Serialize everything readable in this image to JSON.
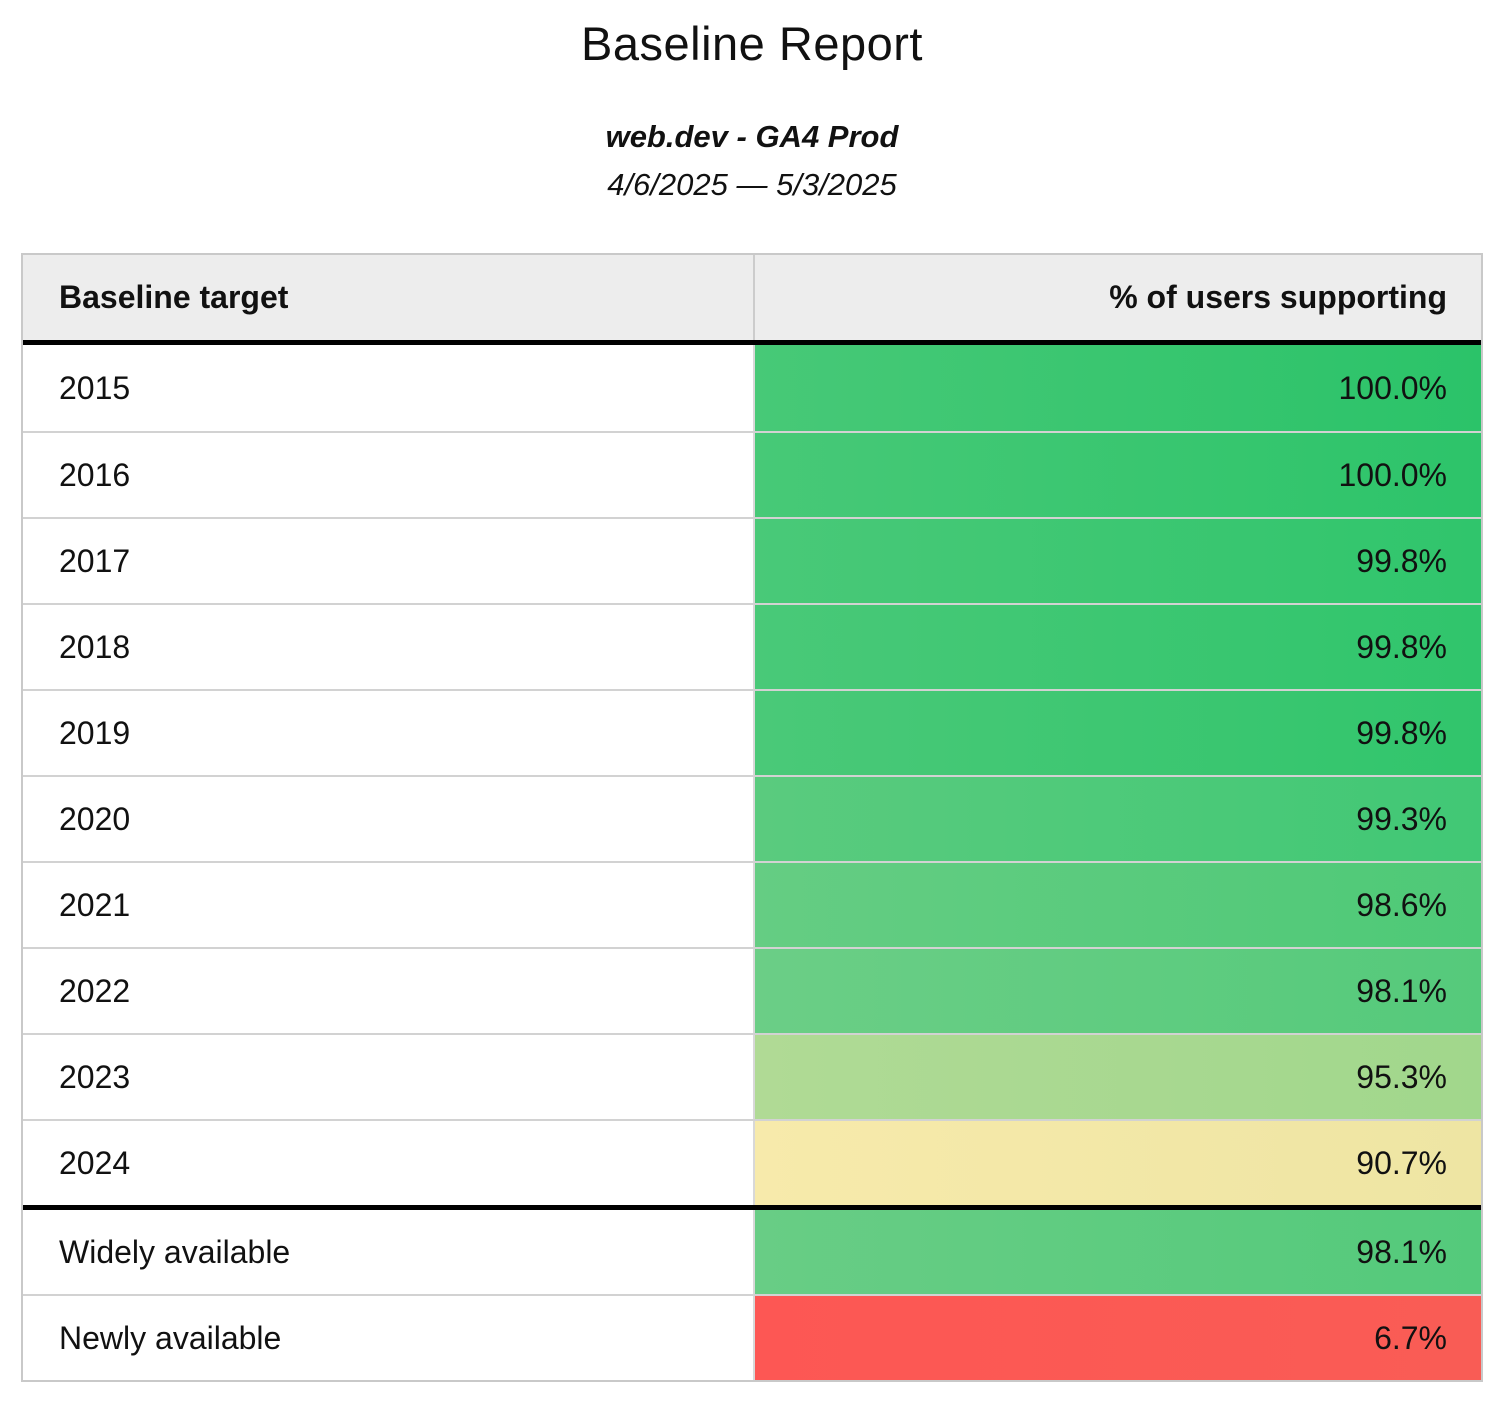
{
  "title": "Baseline Report",
  "subtitle": "web.dev - GA4 Prod",
  "date_range": "4/6/2025 — 5/3/2025",
  "table": {
    "columns": {
      "target": "Baseline target",
      "percent": "% of users supporting"
    },
    "rows": [
      {
        "label": "2015",
        "value": "100.0%",
        "color_left": "#47c977",
        "color_right": "#2bc369",
        "section_break": false
      },
      {
        "label": "2016",
        "value": "100.0%",
        "color_left": "#47c977",
        "color_right": "#2dc46a",
        "section_break": false
      },
      {
        "label": "2017",
        "value": "99.8%",
        "color_left": "#49c978",
        "color_right": "#30c56c",
        "section_break": false
      },
      {
        "label": "2018",
        "value": "99.8%",
        "color_left": "#49c978",
        "color_right": "#30c56c",
        "section_break": false
      },
      {
        "label": "2019",
        "value": "99.8%",
        "color_left": "#4ac978",
        "color_right": "#31c56c",
        "section_break": false
      },
      {
        "label": "2020",
        "value": "99.3%",
        "color_left": "#5acb7e",
        "color_right": "#41c875",
        "section_break": false
      },
      {
        "label": "2021",
        "value": "98.6%",
        "color_left": "#65cd83",
        "color_right": "#4ec977",
        "section_break": false
      },
      {
        "label": "2022",
        "value": "98.1%",
        "color_left": "#6bce86",
        "color_right": "#55ca7b",
        "section_break": false
      },
      {
        "label": "2023",
        "value": "95.3%",
        "color_left": "#b0da95",
        "color_right": "#a1d78c",
        "section_break": false
      },
      {
        "label": "2024",
        "value": "90.7%",
        "color_left": "#f7eaab",
        "color_right": "#eee5a3",
        "section_break": false
      },
      {
        "label": "Widely available",
        "value": "98.1%",
        "color_left": "#68cd85",
        "color_right": "#54ca7b",
        "section_break": true
      },
      {
        "label": "Newly available",
        "value": "6.7%",
        "color_left": "#fd5754",
        "color_right": "#f95c55",
        "section_break": false
      }
    ]
  },
  "colors": {
    "header_bg": "#ededed",
    "border_light": "#d2d2d2",
    "border_heavy": "#000000",
    "good": "#2dc46a",
    "warn": "#eee5a3",
    "bad": "#fd5754"
  }
}
